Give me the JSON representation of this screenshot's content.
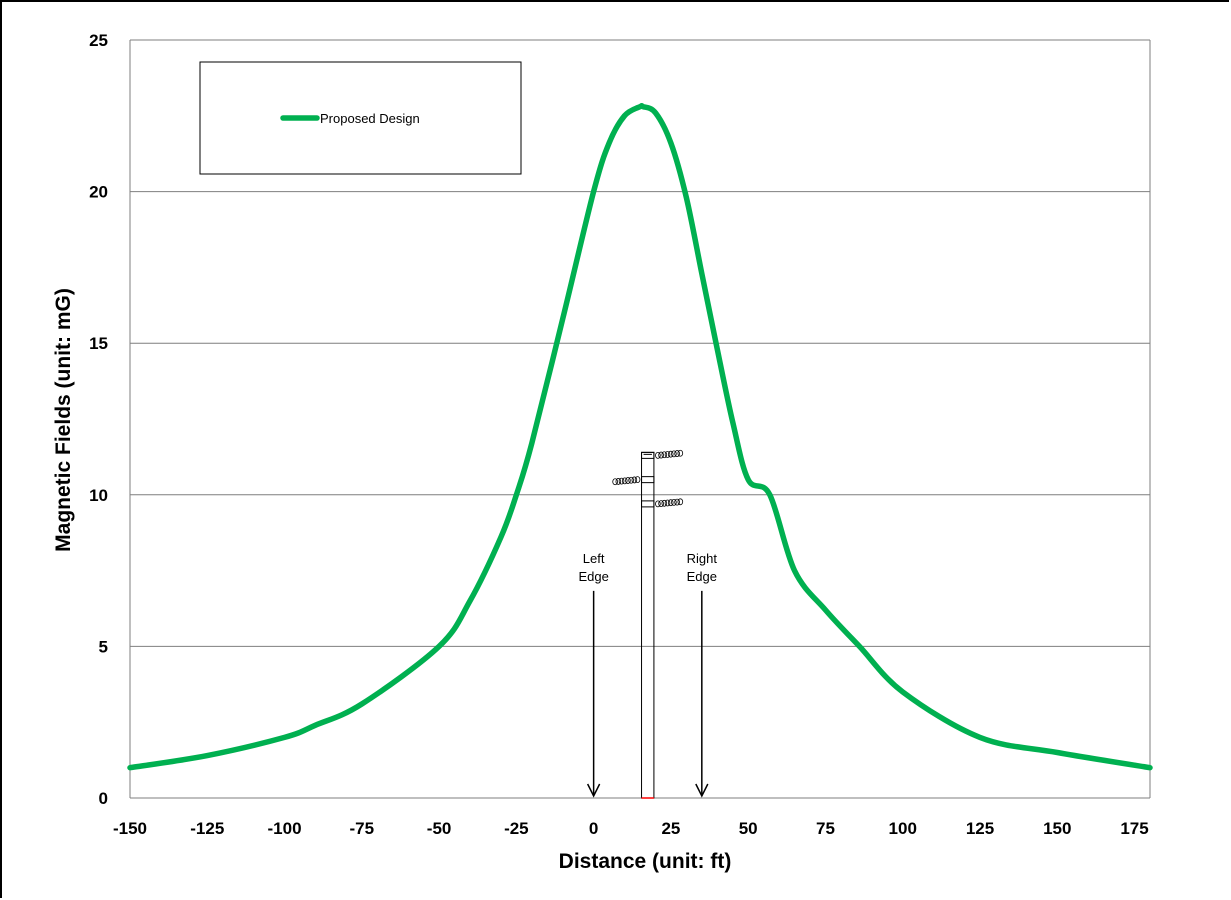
{
  "chart_data": {
    "type": "line",
    "title": "",
    "xlabel": "Distance (unit: ft)",
    "ylabel": "Magnetic Fields (unit: mG)",
    "xlim": [
      -150,
      180
    ],
    "ylim": [
      0,
      25
    ],
    "xticks": [
      -150,
      -125,
      -100,
      -75,
      -50,
      -25,
      0,
      25,
      50,
      75,
      100,
      125,
      150,
      175
    ],
    "yticks": [
      0,
      5,
      10,
      15,
      20,
      25
    ],
    "grid": "horizontal",
    "legend_position": "top-left",
    "series": [
      {
        "name": "Proposed Design",
        "color": "#00b050",
        "x": [
          -150,
          -125,
          -100,
          -90,
          -75,
          -50,
          -40,
          -30,
          -25,
          -20,
          -10,
          0,
          5,
          10,
          15,
          16,
          20,
          25,
          30,
          35,
          40,
          45,
          50,
          57,
          65,
          75,
          86,
          100,
          125,
          150,
          180
        ],
        "y": [
          1.0,
          1.4,
          2.0,
          2.4,
          3.1,
          5.0,
          6.5,
          8.6,
          10.0,
          11.7,
          15.8,
          20.0,
          21.6,
          22.5,
          22.8,
          22.8,
          22.6,
          21.6,
          19.8,
          17.3,
          14.8,
          12.4,
          10.5,
          10.0,
          7.5,
          6.2,
          5.0,
          3.5,
          2.0,
          1.5,
          1.0
        ]
      }
    ],
    "annotations": [
      {
        "label_line1": "Left",
        "label_line2": "Edge",
        "x": 0,
        "arrow_top_y": 6.7,
        "arrow_bottom_y": 0
      },
      {
        "label_line1": "Right",
        "label_line2": "Edge",
        "x": 35,
        "arrow_top_y": 6.7,
        "arrow_bottom_y": 0
      }
    ],
    "pole": {
      "x_left": 15.5,
      "x_right": 19.5,
      "top_y": 11.4
    }
  }
}
